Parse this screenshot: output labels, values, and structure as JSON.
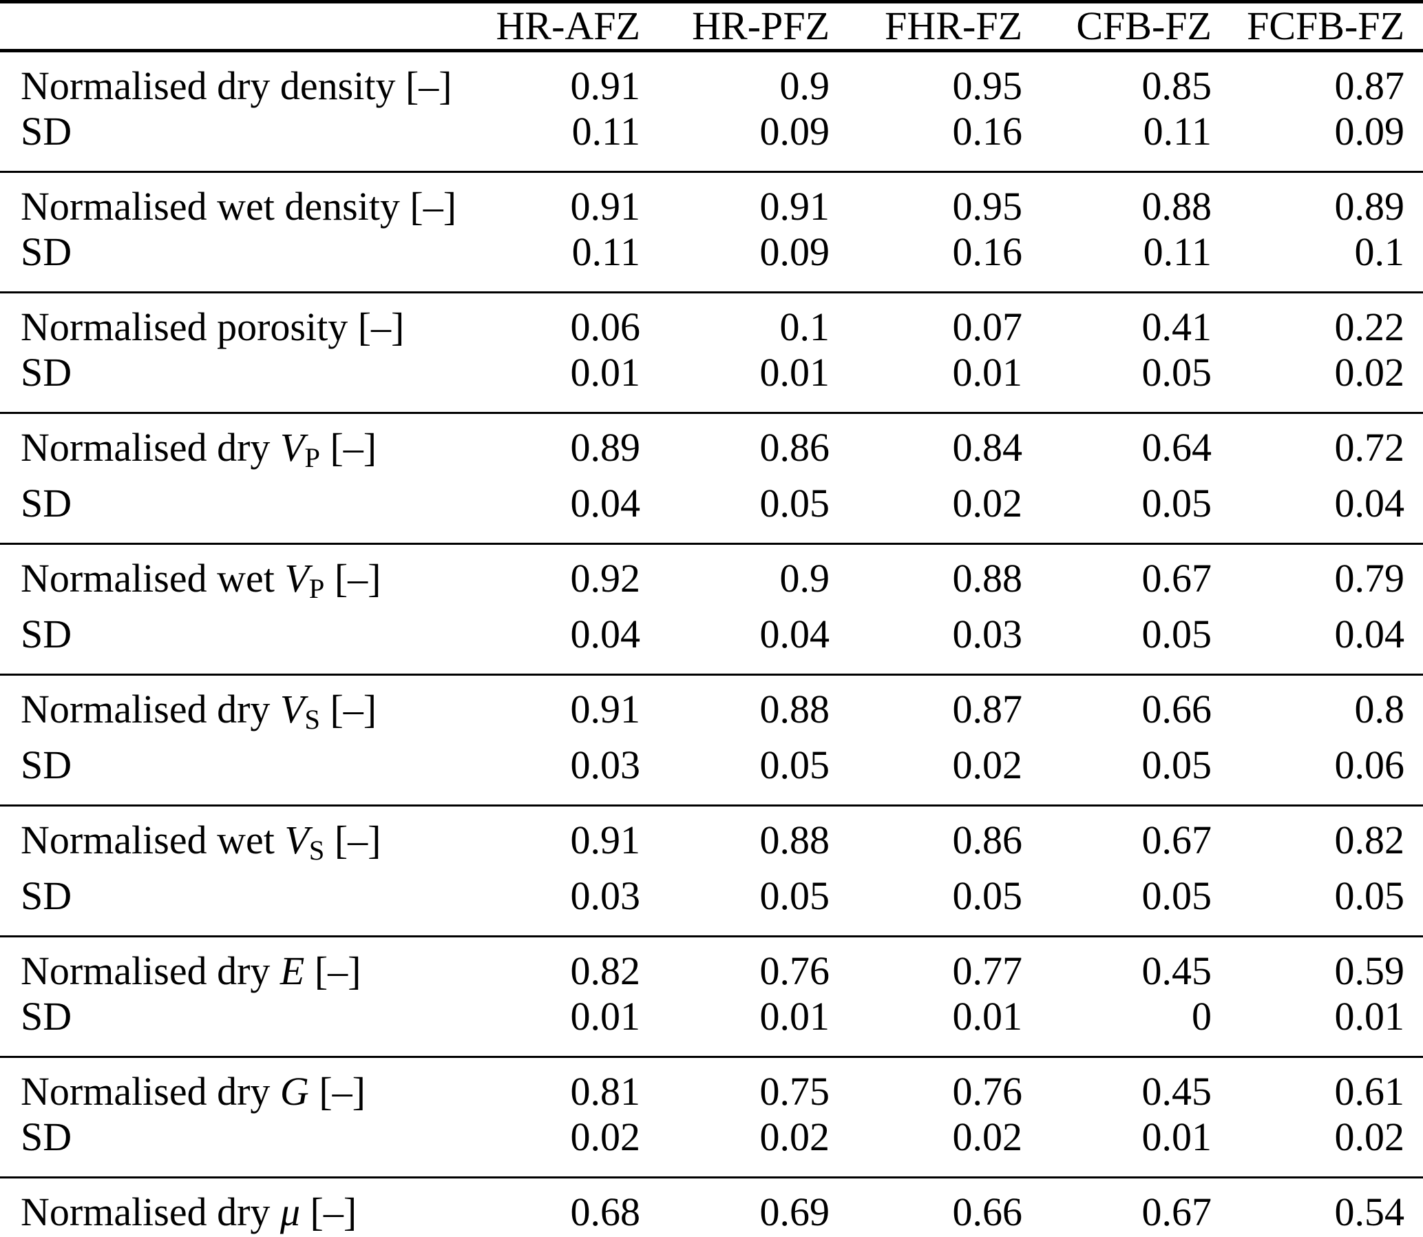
{
  "table": {
    "columns": [
      "HR-AFZ",
      "HR-PFZ",
      "FHR-FZ",
      "CFB-FZ",
      "FCFB-FZ"
    ],
    "sd_label": "SD",
    "groups": [
      {
        "rows": [
          {
            "label_parts": [
              {
                "text": "Normalised dry density [–]",
                "style": "plain"
              }
            ],
            "values": [
              "0.91",
              "0.9",
              "0.95",
              "0.85",
              "0.87"
            ]
          },
          {
            "label_parts": [
              {
                "text": "SD",
                "style": "plain"
              }
            ],
            "values": [
              "0.11",
              "0.09",
              "0.16",
              "0.11",
              "0.09"
            ]
          }
        ]
      },
      {
        "rows": [
          {
            "label_parts": [
              {
                "text": "Normalised wet density [–]",
                "style": "plain"
              }
            ],
            "values": [
              "0.91",
              "0.91",
              "0.95",
              "0.88",
              "0.89"
            ]
          },
          {
            "label_parts": [
              {
                "text": "SD",
                "style": "plain"
              }
            ],
            "values": [
              "0.11",
              "0.09",
              "0.16",
              "0.11",
              "0.1"
            ]
          }
        ]
      },
      {
        "rows": [
          {
            "label_parts": [
              {
                "text": "Normalised porosity [–]",
                "style": "plain"
              }
            ],
            "values": [
              "0.06",
              "0.1",
              "0.07",
              "0.41",
              "0.22"
            ]
          },
          {
            "label_parts": [
              {
                "text": "SD",
                "style": "plain"
              }
            ],
            "values": [
              "0.01",
              "0.01",
              "0.01",
              "0.05",
              "0.02"
            ]
          }
        ]
      },
      {
        "rows": [
          {
            "label_parts": [
              {
                "text": "Normalised dry ",
                "style": "plain"
              },
              {
                "text": "V",
                "style": "italic"
              },
              {
                "text": "P",
                "style": "sub"
              },
              {
                "text": " [–]",
                "style": "plain"
              }
            ],
            "values": [
              "0.89",
              "0.86",
              "0.84",
              "0.64",
              "0.72"
            ]
          },
          {
            "label_parts": [
              {
                "text": "SD",
                "style": "plain"
              }
            ],
            "values": [
              "0.04",
              "0.05",
              "0.02",
              "0.05",
              "0.04"
            ]
          }
        ]
      },
      {
        "rows": [
          {
            "label_parts": [
              {
                "text": "Normalised wet ",
                "style": "plain"
              },
              {
                "text": "V",
                "style": "italic"
              },
              {
                "text": "P",
                "style": "sub"
              },
              {
                "text": " [–]",
                "style": "plain"
              }
            ],
            "values": [
              "0.92",
              "0.9",
              "0.88",
              "0.67",
              "0.79"
            ]
          },
          {
            "label_parts": [
              {
                "text": "SD",
                "style": "plain"
              }
            ],
            "values": [
              "0.04",
              "0.04",
              "0.03",
              "0.05",
              "0.04"
            ]
          }
        ]
      },
      {
        "rows": [
          {
            "label_parts": [
              {
                "text": "Normalised dry ",
                "style": "plain"
              },
              {
                "text": "V",
                "style": "italic"
              },
              {
                "text": "S",
                "style": "sub"
              },
              {
                "text": " [–]",
                "style": "plain"
              }
            ],
            "values": [
              "0.91",
              "0.88",
              "0.87",
              "0.66",
              "0.8"
            ]
          },
          {
            "label_parts": [
              {
                "text": "SD",
                "style": "plain"
              }
            ],
            "values": [
              "0.03",
              "0.05",
              "0.02",
              "0.05",
              "0.06"
            ]
          }
        ]
      },
      {
        "rows": [
          {
            "label_parts": [
              {
                "text": "Normalised wet ",
                "style": "plain"
              },
              {
                "text": "V",
                "style": "italic"
              },
              {
                "text": "S",
                "style": "sub"
              },
              {
                "text": " [–]",
                "style": "plain"
              }
            ],
            "values": [
              "0.91",
              "0.88",
              "0.86",
              "0.67",
              "0.82"
            ]
          },
          {
            "label_parts": [
              {
                "text": "SD",
                "style": "plain"
              }
            ],
            "values": [
              "0.03",
              "0.05",
              "0.05",
              "0.05",
              "0.05"
            ]
          }
        ]
      },
      {
        "rows": [
          {
            "label_parts": [
              {
                "text": "Normalised dry ",
                "style": "plain"
              },
              {
                "text": "E",
                "style": "italic"
              },
              {
                "text": " [–]",
                "style": "plain"
              }
            ],
            "values": [
              "0.82",
              "0.76",
              "0.77",
              "0.45",
              "0.59"
            ]
          },
          {
            "label_parts": [
              {
                "text": "SD",
                "style": "plain"
              }
            ],
            "values": [
              "0.01",
              "0.01",
              "0.01",
              "0",
              "0.01"
            ]
          }
        ]
      },
      {
        "rows": [
          {
            "label_parts": [
              {
                "text": "Normalised dry ",
                "style": "plain"
              },
              {
                "text": "G",
                "style": "italic"
              },
              {
                "text": " [–]",
                "style": "plain"
              }
            ],
            "values": [
              "0.81",
              "0.75",
              "0.76",
              "0.45",
              "0.61"
            ]
          },
          {
            "label_parts": [
              {
                "text": "SD",
                "style": "plain"
              }
            ],
            "values": [
              "0.02",
              "0.02",
              "0.02",
              "0.01",
              "0.02"
            ]
          }
        ]
      },
      {
        "rows": [
          {
            "label_parts": [
              {
                "text": "Normalised dry ",
                "style": "plain"
              },
              {
                "text": "μ",
                "style": "italic"
              },
              {
                "text": " [–]",
                "style": "plain"
              }
            ],
            "values": [
              "0.68",
              "0.69",
              "0.66",
              "0.67",
              "0.54"
            ]
          }
        ]
      }
    ]
  }
}
